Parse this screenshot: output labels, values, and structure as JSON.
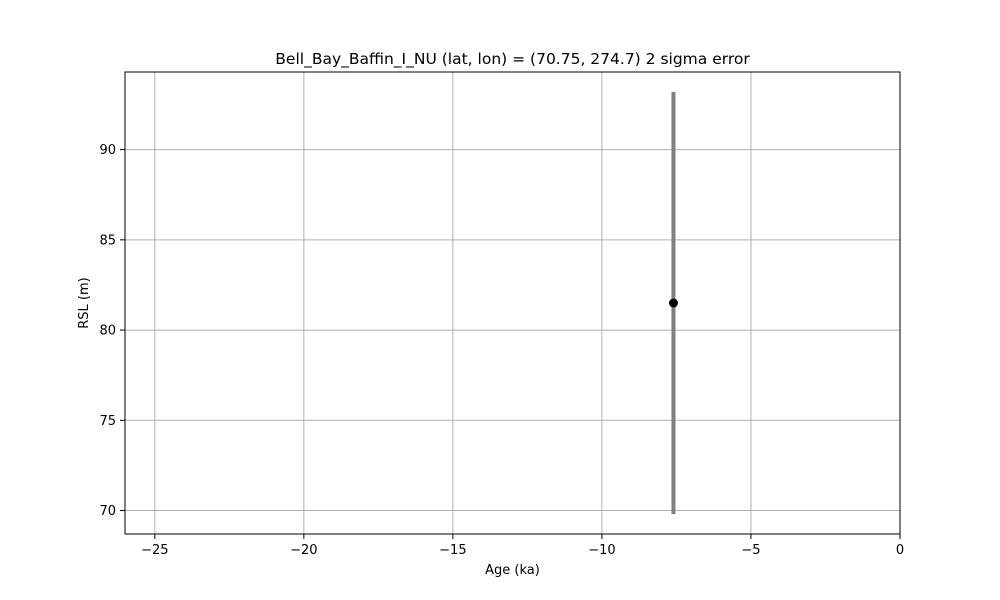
{
  "chart_data": {
    "type": "scatter",
    "title": "Bell_Bay_Baffin_I_NU (lat, lon) = (70.75, 274.7)  2 sigma error",
    "xlabel": "Age (ka)",
    "ylabel": "RSL (m)",
    "xlim": [
      -26,
      0
    ],
    "ylim": [
      68.7,
      94.3
    ],
    "xticks": [
      -25,
      -20,
      -15,
      -10,
      -5,
      0
    ],
    "xtick_labels": [
      "−25",
      "−20",
      "−15",
      "−10",
      "−5",
      "0"
    ],
    "yticks": [
      70,
      75,
      80,
      85,
      90
    ],
    "ytick_labels": [
      "70",
      "75",
      "80",
      "85",
      "90"
    ],
    "grid": true,
    "points": [
      {
        "x": -7.6,
        "y": 81.5,
        "y_err_low": 69.8,
        "y_err_high": 93.2
      }
    ],
    "colors": {
      "marker": "#000000",
      "errorbar": "#808080",
      "grid": "#b0b0b0"
    }
  }
}
